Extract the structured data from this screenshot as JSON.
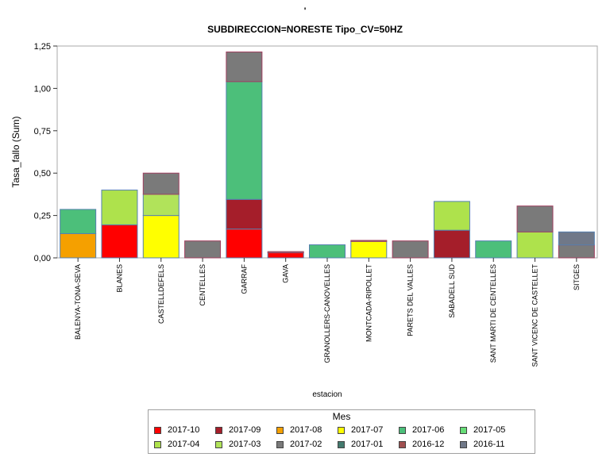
{
  "chart_data": {
    "type": "bar",
    "title": "'",
    "subtitle": "SUBDIRECCION=NORESTE Tipo_CV=50HZ",
    "xlabel": "estacion",
    "ylabel": "Tasa_fallo (Sum)",
    "ylim": [
      0,
      1.25
    ],
    "yticks": [
      "0,00",
      "0,25",
      "0,50",
      "0,75",
      "1,00",
      "1,25"
    ],
    "grid": false,
    "stacked": true,
    "legend_position": "bottom",
    "legend_title": "Mes",
    "categories": [
      "BALENYA-TONA-SEVA",
      "BLANES",
      "CASTELLDEFELS",
      "CENTELLES",
      "GARRAF",
      "GAVA",
      "GRANOLLERS-CANOVELLES",
      "MONTCADA-RIPOLLET",
      "PARETS DEL VALLES",
      "SABADELL SUD",
      "SANT MARTI DE CENTELLES",
      "SANT VICENC DE CASTELLET",
      "SITGES"
    ],
    "series": [
      {
        "name": "2017-10",
        "color": "#ff0000",
        "values": [
          0,
          0.195,
          0,
          0,
          0.17,
          0.03,
          0,
          0,
          0,
          0,
          0,
          0,
          0
        ]
      },
      {
        "name": "2017-09",
        "color": "#a51e2a",
        "values": [
          0,
          0,
          0,
          0,
          0.175,
          0,
          0,
          0,
          0,
          0.163,
          0,
          0,
          0
        ]
      },
      {
        "name": "2017-08",
        "color": "#f5a000",
        "values": [
          0.143,
          0,
          0,
          0,
          0,
          0,
          0,
          0,
          0,
          0,
          0,
          0,
          0
        ]
      },
      {
        "name": "2017-07",
        "color": "#ffff00",
        "values": [
          0,
          0,
          0.25,
          0,
          0,
          0,
          0,
          0.097,
          0,
          0,
          0,
          0,
          0
        ]
      },
      {
        "name": "2017-06",
        "color": "#4cbf7a",
        "values": [
          0.143,
          0,
          0,
          0,
          0.695,
          0,
          0.077,
          0,
          0,
          0,
          0.1,
          0,
          0
        ]
      },
      {
        "name": "2017-05",
        "color": "#66dd77",
        "values": [
          0,
          0,
          0,
          0,
          0,
          0,
          0,
          0,
          0,
          0,
          0,
          0,
          0
        ]
      },
      {
        "name": "2017-04",
        "color": "#aee24c",
        "values": [
          0,
          0.205,
          0,
          0,
          0,
          0,
          0,
          0,
          0,
          0.17,
          0,
          0.153,
          0
        ]
      },
      {
        "name": "2017-03",
        "color": "#b1e35a",
        "values": [
          0,
          0,
          0.125,
          0,
          0,
          0,
          0,
          0,
          0,
          0,
          0,
          0,
          0
        ]
      },
      {
        "name": "2017-02",
        "color": "#7a7a7a",
        "values": [
          0,
          0,
          0.125,
          0.1,
          0.175,
          0.007,
          0,
          0.006,
          0.1,
          0,
          0,
          0.153,
          0.076
        ]
      },
      {
        "name": "2017-01",
        "color": "#437a6e",
        "values": [
          0,
          0,
          0,
          0,
          0,
          0,
          0,
          0,
          0,
          0,
          0,
          0,
          0
        ]
      },
      {
        "name": "2016-12",
        "color": "#a05050",
        "values": [
          0,
          0,
          0,
          0,
          0,
          0,
          0,
          0,
          0,
          0,
          0,
          0,
          0
        ]
      },
      {
        "name": "2016-11",
        "color": "#707888",
        "values": [
          0,
          0,
          0,
          0,
          0,
          0,
          0,
          0,
          0,
          0,
          0,
          0,
          0.077
        ]
      }
    ]
  }
}
